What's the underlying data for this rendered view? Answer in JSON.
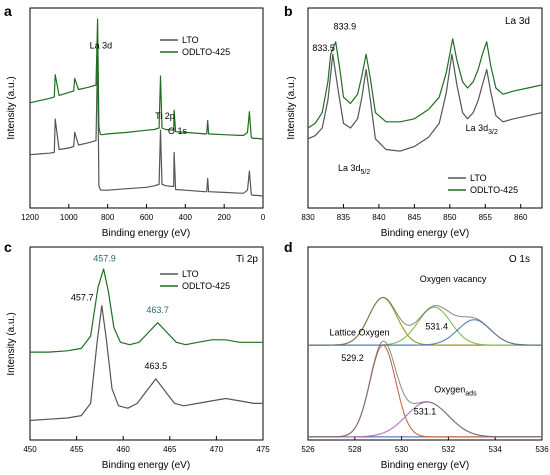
{
  "colors": {
    "lto": "#555555",
    "odlto": "#1f6e1f",
    "label_teal": "#2e6b6b"
  },
  "chart_data": [
    {
      "panel_letter": "a",
      "type": "line",
      "xlabel": "Binding energy (eV)",
      "ylabel": "Intensity (a.u.)",
      "xlim": [
        1200,
        0
      ],
      "x_ticks": [
        1200,
        1000,
        800,
        600,
        400,
        200,
        0
      ],
      "x_reversed": true,
      "legend_position": "top-right",
      "series": [
        {
          "name": "LTO",
          "color": "#555555",
          "x": [
            1200,
            1150,
            1100,
            1075,
            1070,
            1050,
            1000,
            975,
            970,
            950,
            900,
            860,
            852,
            845,
            838,
            835,
            830,
            800,
            700,
            600,
            560,
            535,
            528,
            520,
            500,
            460,
            458,
            450,
            400,
            300,
            290,
            285,
            280,
            200,
            120,
            100,
            80,
            70,
            60,
            50,
            30,
            0
          ],
          "y": [
            112,
            113,
            114,
            115,
            160,
            119,
            121,
            123,
            142,
            125,
            128,
            131,
            245,
            70,
            65,
            64,
            64,
            64,
            66,
            68,
            70,
            72,
            145,
            72,
            70,
            69,
            115,
            65,
            64,
            62,
            62,
            80,
            62,
            61,
            60,
            60,
            64,
            90,
            58,
            57,
            57,
            56
          ]
        },
        {
          "name": "ODLTO-425",
          "color": "#1f6e1f",
          "x": [
            1200,
            1150,
            1100,
            1075,
            1070,
            1050,
            1000,
            975,
            970,
            950,
            900,
            860,
            852,
            845,
            838,
            835,
            830,
            800,
            700,
            600,
            560,
            535,
            528,
            520,
            500,
            460,
            458,
            450,
            400,
            300,
            290,
            285,
            280,
            200,
            120,
            100,
            80,
            70,
            60,
            50,
            30,
            0
          ],
          "y": [
            182,
            185,
            188,
            190,
            220,
            192,
            196,
            198,
            215,
            200,
            203,
            206,
            295,
            150,
            140,
            139,
            139,
            140,
            142,
            145,
            146,
            148,
            218,
            148,
            146,
            145,
            172,
            143,
            142,
            140,
            140,
            158,
            140,
            139,
            138,
            138,
            142,
            170,
            135,
            134,
            134,
            133
          ]
        }
      ],
      "annotations": [
        {
          "text": "La 3d",
          "x": 835,
          "y": 255
        },
        {
          "text": "Ti 2p",
          "x": 505,
          "y": 160
        },
        {
          "text": "O 1s",
          "x": 440,
          "y": 140
        }
      ]
    },
    {
      "panel_letter": "b",
      "panel_title": "La 3d",
      "type": "line",
      "xlabel": "Binding energy (eV)",
      "ylabel": "Intensity (a.u.)",
      "xlim": [
        830,
        863
      ],
      "x_ticks": [
        830,
        835,
        840,
        845,
        850,
        855,
        860
      ],
      "legend_position": "bottom-right",
      "series": [
        {
          "name": "LTO",
          "color": "#555555",
          "x": [
            830,
            831,
            832,
            832.8,
            833.5,
            834.2,
            835,
            836,
            837,
            837.6,
            838.2,
            838.8,
            839.5,
            841,
            843,
            845,
            847,
            848.5,
            849.5,
            850.3,
            851,
            851.8,
            852.5,
            853.3,
            854,
            854.6,
            855.2,
            855.8,
            856.5,
            857.5,
            859,
            861,
            863
          ],
          "y": [
            45,
            47,
            52,
            70,
            100,
            78,
            55,
            52,
            58,
            72,
            90,
            70,
            45,
            38,
            37,
            40,
            46,
            55,
            75,
            100,
            80,
            62,
            58,
            62,
            70,
            80,
            90,
            75,
            60,
            56,
            58,
            60,
            62
          ]
        },
        {
          "name": "ODLTO-425",
          "color": "#1f6e1f",
          "x": [
            830,
            831,
            832,
            832.8,
            833.2,
            833.9,
            834.5,
            835,
            836,
            837,
            837.6,
            838.2,
            838.8,
            839.5,
            841,
            843,
            845,
            847,
            848.5,
            849.5,
            850.4,
            851,
            851.8,
            852.5,
            853.3,
            854,
            854.6,
            855.2,
            855.8,
            856.5,
            857.5,
            859,
            861,
            863
          ],
          "y": [
            52,
            55,
            62,
            82,
            100,
            108,
            90,
            72,
            68,
            74,
            86,
            100,
            84,
            62,
            56,
            56,
            58,
            64,
            72,
            88,
            110,
            96,
            82,
            78,
            82,
            90,
            100,
            108,
            92,
            78,
            74,
            76,
            78,
            80
          ]
        }
      ],
      "annotations": [
        {
          "text": "833.5",
          "x": 832.2,
          "y": 102
        },
        {
          "text": "833.9",
          "x": 835.2,
          "y": 116
        },
        {
          "text": "La 3d",
          "sub": "5/2",
          "x": 836.5,
          "y": 24
        },
        {
          "text": "La 3d",
          "sub": "3/2",
          "x": 854.5,
          "y": 50
        }
      ]
    },
    {
      "panel_letter": "c",
      "panel_title": "Ti 2p",
      "type": "line",
      "xlabel": "Binding energy (eV)",
      "ylabel": "Intensity (a.u.)",
      "xlim": [
        450,
        475
      ],
      "x_ticks": [
        450,
        455,
        460,
        465,
        470,
        475
      ],
      "legend_position": "top-right",
      "series": [
        {
          "name": "LTO",
          "color": "#555555",
          "x": [
            450,
            452,
            454,
            455.5,
            456.5,
            457.2,
            457.7,
            458.2,
            458.8,
            459.5,
            460.5,
            461.5,
            462.5,
            463.5,
            464.5,
            465.5,
            466.5,
            468,
            469.5,
            471,
            472.5,
            474,
            475
          ],
          "y": [
            6,
            7,
            8,
            10,
            20,
            70,
            100,
            72,
            32,
            18,
            16,
            20,
            30,
            40,
            30,
            20,
            18,
            20,
            22,
            24,
            22,
            20,
            20
          ]
        },
        {
          "name": "ODLTO-425",
          "color": "#1f6e1f",
          "x": [
            450,
            452,
            454,
            455.5,
            456.5,
            457.3,
            457.9,
            458.4,
            459,
            459.7,
            460.7,
            461.7,
            462.7,
            463.7,
            464.7,
            465.7,
            466.7,
            468,
            469.5,
            471,
            472.5,
            474,
            475
          ],
          "y": [
            62,
            62,
            63,
            65,
            75,
            115,
            130,
            112,
            82,
            70,
            68,
            70,
            78,
            86,
            78,
            70,
            68,
            70,
            72,
            72,
            70,
            70,
            70
          ]
        }
      ],
      "annotations": [
        {
          "text": "457.9",
          "x": 458.0,
          "y": 136,
          "color": "#2e6b6b"
        },
        {
          "text": "457.7",
          "x": 455.6,
          "y": 104
        },
        {
          "text": "463.7",
          "x": 463.7,
          "y": 94,
          "color": "#2e6b6b"
        },
        {
          "text": "463.5",
          "x": 463.5,
          "y": 48
        }
      ]
    },
    {
      "panel_letter": "d",
      "panel_title": "O 1s",
      "type": "line",
      "xlabel": "Binding energy (eV)",
      "ylabel": "",
      "xlim": [
        526,
        536
      ],
      "x_ticks": [
        526,
        528,
        530,
        532,
        534,
        536
      ],
      "peaks": {
        "upper": {
          "baseline": 60,
          "components": [
            {
              "center": 529.2,
              "height": 30,
              "width": 0.6,
              "color": "#9a9a1a"
            },
            {
              "center": 531.4,
              "height": 24,
              "width": 0.7,
              "color": "#7fbf4f"
            },
            {
              "center": 533.1,
              "height": 16,
              "width": 0.7,
              "color": "#4f7fbf"
            }
          ]
        },
        "lower": {
          "baseline": 2,
          "components": [
            {
              "center": 529.2,
              "height": 58,
              "width": 0.55,
              "color": "#c06a4a"
            },
            {
              "center": 531.1,
              "height": 22,
              "width": 0.9,
              "color": "#b070c0"
            }
          ]
        }
      },
      "annotations": [
        {
          "text": "Oxygen vacancy",
          "x": 532.2,
          "y": 100
        },
        {
          "text": "531.4",
          "x": 531.5,
          "y": 70
        },
        {
          "text": "Lattice Oxygen",
          "x": 528.2,
          "y": 66
        },
        {
          "text": "529.2",
          "x": 527.9,
          "y": 50
        },
        {
          "text": "Oxygen",
          "sub": "ads",
          "x": 532.3,
          "y": 30
        },
        {
          "text": "531.1",
          "x": 531.0,
          "y": 16
        }
      ]
    }
  ]
}
